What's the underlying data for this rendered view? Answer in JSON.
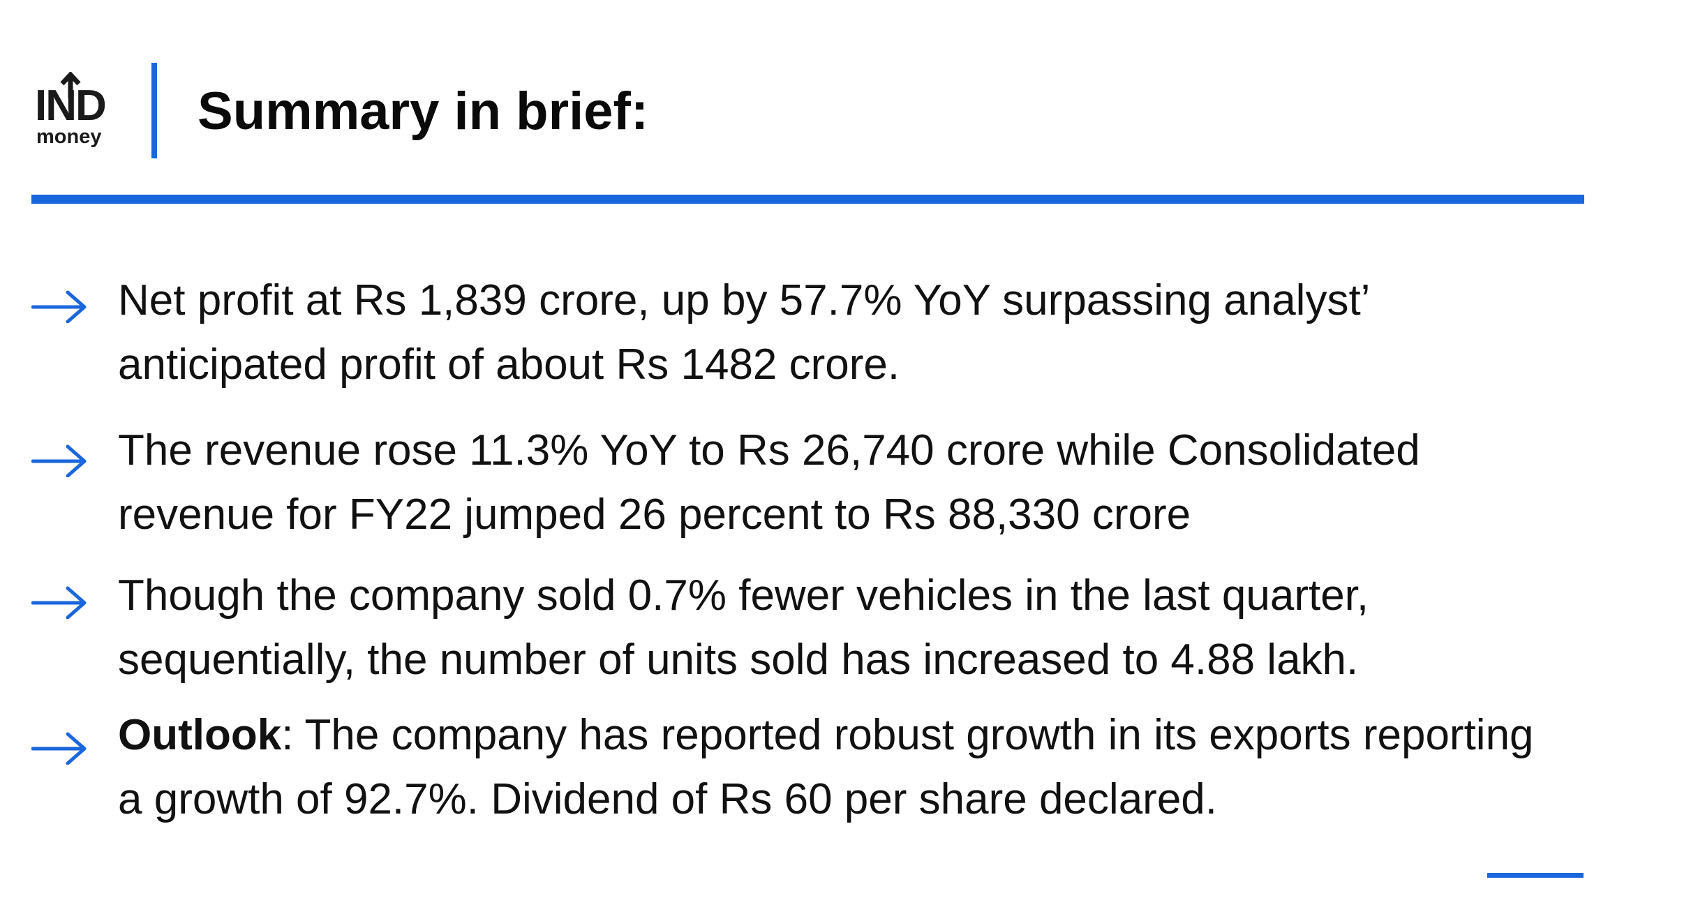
{
  "logo": {
    "top": "IND",
    "bottom": "money"
  },
  "header": {
    "title": "Summary in brief:"
  },
  "colors": {
    "accent": "#1a66dc",
    "text": "#111111"
  },
  "bullets": [
    {
      "icon": "right-arrow-icon",
      "text": "Net profit at Rs 1,839 crore, up by 57.7% YoY surpassing analyst’ anticipated profit of about Rs 1482 crore."
    },
    {
      "icon": "right-arrow-icon",
      "text": "The revenue rose 11.3% YoY to Rs 26,740 crore while Consolidated revenue for FY22 jumped 26 percent to Rs 88,330 crore"
    },
    {
      "icon": "right-arrow-icon",
      "text": "Though the company sold 0.7% fewer vehicles in the last quarter, sequentially, the number of units sold has increased to 4.88 lakh."
    },
    {
      "icon": "right-arrow-icon",
      "label": "Outlook",
      "text": ": The company has reported robust growth in its exports reporting a growth of 92.7%. Dividend of Rs 60 per share declared."
    }
  ]
}
